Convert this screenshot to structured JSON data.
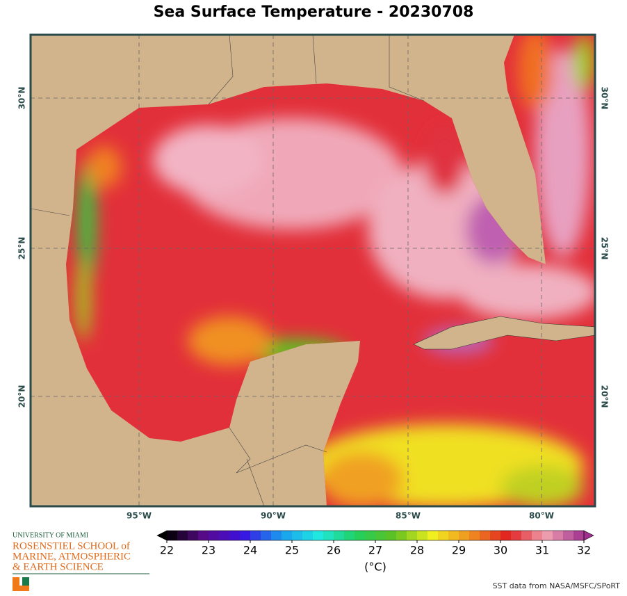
{
  "title": "Sea Surface Temperature - 20230708",
  "map": {
    "longitude_labels": [
      "95°W",
      "90°W",
      "85°W",
      "80°W"
    ],
    "latitude_labels": [
      "30°N",
      "25°N",
      "20°N"
    ]
  },
  "colorbar": {
    "range": [
      22,
      32
    ],
    "ticks": [
      22,
      23,
      24,
      25,
      26,
      27,
      28,
      29,
      30,
      31,
      32
    ],
    "unit": "(°C)",
    "colors": [
      "#000000",
      "#5a0a8c",
      "#3a10e0",
      "#1a9af0",
      "#20e8e0",
      "#20d060",
      "#60c020",
      "#f0f020",
      "#f09020",
      "#e02020",
      "#f0a0b0",
      "#a03090"
    ]
  },
  "logo": {
    "university": "UNIVERSITY OF MIAMI",
    "school": [
      "ROSENSTIEL SCHOOL of",
      "MARINE, ATMOSPHERIC",
      "& EARTH SCIENCE"
    ]
  },
  "credit": "SST data from NASA/MSFC/SPoRT"
}
